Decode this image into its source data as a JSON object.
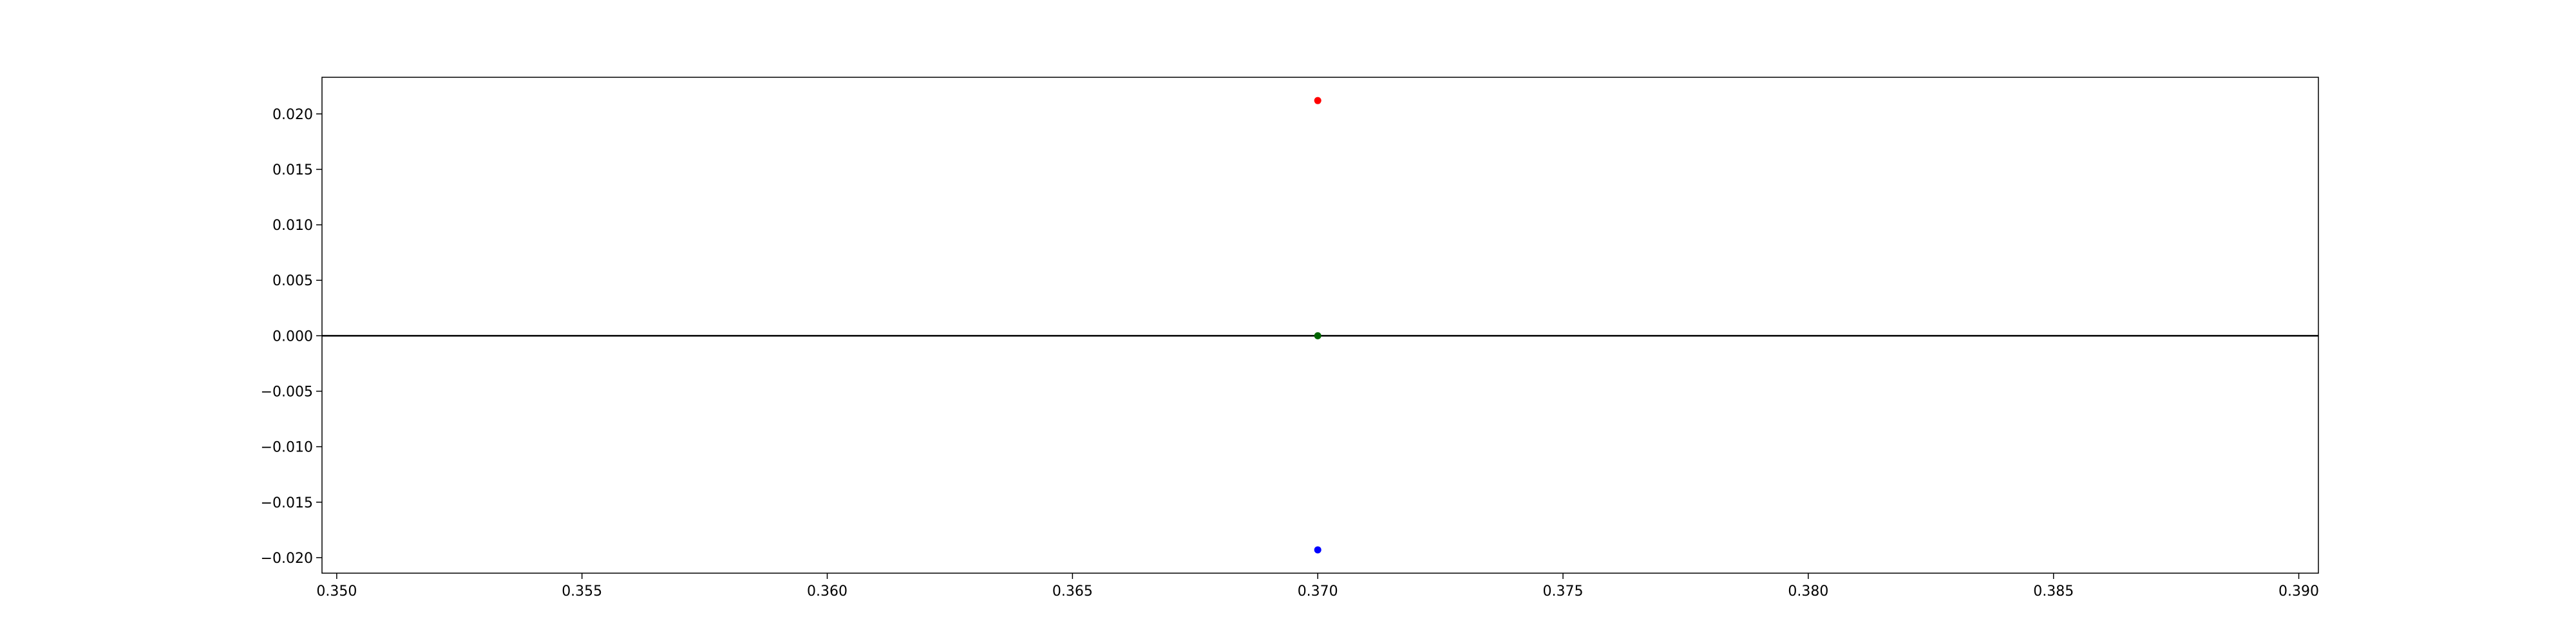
{
  "chart_data": {
    "type": "scatter",
    "title": "",
    "xlabel": "",
    "ylabel": "",
    "xlim": [
      0.3497,
      0.3904
    ],
    "ylim": [
      -0.0214,
      0.0233
    ],
    "xticks": [
      0.35,
      0.355,
      0.36,
      0.365,
      0.37,
      0.375,
      0.38,
      0.385,
      0.39
    ],
    "xtick_labels": [
      "0.350",
      "0.355",
      "0.360",
      "0.365",
      "0.370",
      "0.375",
      "0.380",
      "0.385",
      "0.390"
    ],
    "yticks": [
      0.02,
      0.015,
      0.01,
      0.005,
      0.0,
      -0.005,
      -0.01,
      -0.015,
      -0.02
    ],
    "ytick_labels": [
      "0.020",
      "0.015",
      "0.010",
      "0.005",
      "0.000",
      "−0.005",
      "−0.010",
      "−0.015",
      "−0.020"
    ],
    "grid": false,
    "reference_line": {
      "y": 0.0,
      "color": "#000000"
    },
    "series": [
      {
        "color": "#ff0000",
        "x": [
          0.37
        ],
        "y": [
          0.0212
        ]
      },
      {
        "color": "#006400",
        "x": [
          0.37
        ],
        "y": [
          0.0
        ]
      },
      {
        "color": "#0000ff",
        "x": [
          0.37
        ],
        "y": [
          -0.0193
        ]
      }
    ]
  }
}
